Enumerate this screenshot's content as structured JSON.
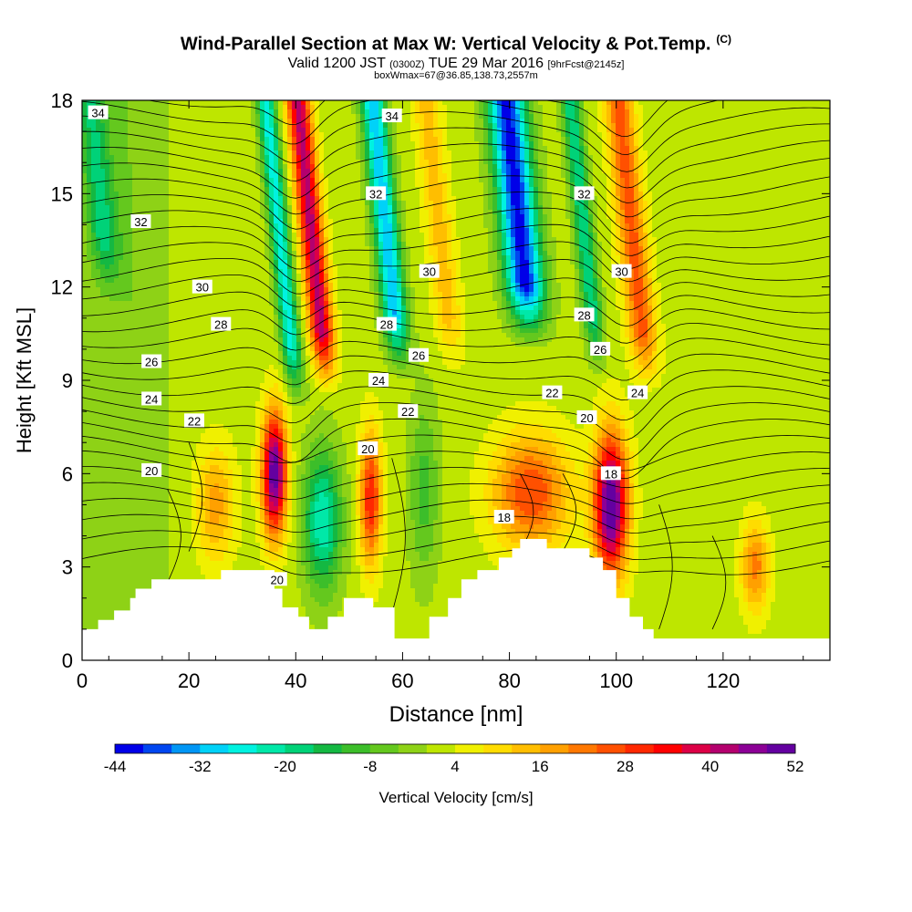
{
  "title": {
    "main": "Wind-Parallel Section at Max W: Vertical Velocity & Pot.Temp.",
    "copyright": "(C)",
    "valid_a": "Valid 1200 JST",
    "valid_b": "(0300Z)",
    "valid_c": "TUE 29 Mar 2016",
    "valid_d": "[9hrFcst@2145z]",
    "sub2": "boxWmax=67@36.85,138.73,2557m"
  },
  "chart_data": {
    "type": "heatmap",
    "xlabel": "Distance [nm]",
    "ylabel": "Height [Kft MSL]",
    "xlim": [
      0,
      140
    ],
    "ylim": [
      0,
      18
    ],
    "x_ticks": [
      0,
      20,
      40,
      60,
      80,
      100,
      120
    ],
    "y_ticks": [
      0,
      3,
      6,
      9,
      12,
      15,
      18
    ],
    "colorbar": {
      "label": "Vertical Velocity [cm/s]",
      "tick_labels": [
        "-44",
        "-32",
        "-20",
        "-8",
        "4",
        "16",
        "28",
        "40",
        "52"
      ],
      "levels": [
        -44,
        -40,
        -36,
        -32,
        -28,
        -24,
        -20,
        -16,
        -12,
        -8,
        -4,
        0,
        4,
        8,
        12,
        16,
        20,
        24,
        28,
        32,
        36,
        40,
        44,
        48,
        52
      ],
      "colors": [
        "#0000e8",
        "#0046f0",
        "#0096f5",
        "#00d2f8",
        "#00f2e0",
        "#00e8a8",
        "#00d278",
        "#14b842",
        "#3cbe2a",
        "#64c81e",
        "#8ed216",
        "#bee600",
        "#f0f000",
        "#ffdc00",
        "#ffbe00",
        "#ffa000",
        "#ff7800",
        "#ff5000",
        "#ff2800",
        "#ff0000",
        "#dc0046",
        "#b4006e",
        "#8c0096",
        "#6400a0"
      ]
    },
    "velocity_features": [
      {
        "x": 36,
        "z": 6.0,
        "w": 50,
        "sx": 1.6,
        "sz": 1.4
      },
      {
        "x": 99,
        "z": 5.0,
        "w": 52,
        "sx": 2.2,
        "sz": 1.6
      },
      {
        "x": 54,
        "z": 5.2,
        "w": 30,
        "sx": 1.4,
        "sz": 1.5
      },
      {
        "x": 84,
        "z": 5.4,
        "w": 26,
        "sx": 5.0,
        "sz": 1.3
      },
      {
        "x": 25,
        "z": 5.0,
        "w": 16,
        "sx": 2.5,
        "sz": 1.3
      },
      {
        "x": 126,
        "z": 3.0,
        "w": 20,
        "sx": 1.8,
        "sz": 1.0
      },
      {
        "x": 45,
        "z": 4.5,
        "w": -26,
        "sx": 2.5,
        "sz": 1.6
      },
      {
        "x": 64,
        "z": 5.5,
        "w": -12,
        "sx": 2.0,
        "sz": 2.0
      }
    ],
    "theta_labels": [
      {
        "x": 3,
        "z": 17.6,
        "text": "34"
      },
      {
        "x": 58,
        "z": 17.5,
        "text": "34"
      },
      {
        "x": 11,
        "z": 14.1,
        "text": "32"
      },
      {
        "x": 55,
        "z": 15.0,
        "text": "32"
      },
      {
        "x": 94,
        "z": 15.0,
        "text": "32"
      },
      {
        "x": 22.5,
        "z": 12.0,
        "text": "30"
      },
      {
        "x": 65,
        "z": 12.5,
        "text": "30"
      },
      {
        "x": 101,
        "z": 12.5,
        "text": "30"
      },
      {
        "x": 26,
        "z": 10.8,
        "text": "28"
      },
      {
        "x": 57,
        "z": 10.8,
        "text": "28"
      },
      {
        "x": 94,
        "z": 11.1,
        "text": "28"
      },
      {
        "x": 13,
        "z": 9.6,
        "text": "26"
      },
      {
        "x": 63,
        "z": 9.8,
        "text": "26"
      },
      {
        "x": 97,
        "z": 10.0,
        "text": "26"
      },
      {
        "x": 13,
        "z": 8.4,
        "text": "24"
      },
      {
        "x": 55.5,
        "z": 9.0,
        "text": "24"
      },
      {
        "x": 104,
        "z": 8.6,
        "text": "24"
      },
      {
        "x": 21,
        "z": 7.7,
        "text": "22"
      },
      {
        "x": 61,
        "z": 8.0,
        "text": "22"
      },
      {
        "x": 88,
        "z": 8.6,
        "text": "22"
      },
      {
        "x": 13,
        "z": 6.1,
        "text": "20"
      },
      {
        "x": 53.5,
        "z": 6.8,
        "text": "20"
      },
      {
        "x": 94.5,
        "z": 7.8,
        "text": "20"
      },
      {
        "x": 36.5,
        "z": 2.6,
        "text": "20"
      },
      {
        "x": 79,
        "z": 4.6,
        "text": "18"
      },
      {
        "x": 99,
        "z": 6.0,
        "text": "18"
      }
    ],
    "terrain_profile_kft": [
      [
        0,
        1.0
      ],
      [
        3,
        1.0
      ],
      [
        3,
        1.3
      ],
      [
        6,
        1.3
      ],
      [
        6,
        1.6
      ],
      [
        9,
        1.6
      ],
      [
        9,
        2.0
      ],
      [
        10,
        2.0
      ],
      [
        10,
        2.3
      ],
      [
        13,
        2.3
      ],
      [
        13,
        2.6
      ],
      [
        26,
        2.6
      ],
      [
        26,
        2.9
      ],
      [
        36,
        2.9
      ],
      [
        36,
        2.3
      ],
      [
        37.5,
        2.3
      ],
      [
        37.5,
        1.7
      ],
      [
        40.5,
        1.7
      ],
      [
        40.5,
        1.4
      ],
      [
        42.5,
        1.4
      ],
      [
        42.5,
        1.0
      ],
      [
        46,
        1.0
      ],
      [
        46,
        1.4
      ],
      [
        49,
        1.4
      ],
      [
        49,
        2.0
      ],
      [
        54.5,
        2.0
      ],
      [
        54.5,
        1.7
      ],
      [
        58.5,
        1.7
      ],
      [
        58.5,
        0.7
      ],
      [
        65,
        0.7
      ],
      [
        65,
        1.4
      ],
      [
        68.5,
        1.4
      ],
      [
        68.5,
        2.0
      ],
      [
        71,
        2.0
      ],
      [
        71,
        2.6
      ],
      [
        74,
        2.6
      ],
      [
        74,
        2.9
      ],
      [
        78,
        2.9
      ],
      [
        78,
        3.3
      ],
      [
        80.5,
        3.3
      ],
      [
        80.5,
        3.6
      ],
      [
        82,
        3.6
      ],
      [
        82,
        3.9
      ],
      [
        87,
        3.9
      ],
      [
        87,
        3.6
      ],
      [
        95,
        3.6
      ],
      [
        95,
        3.3
      ],
      [
        97.5,
        3.3
      ],
      [
        97.5,
        2.9
      ],
      [
        100,
        2.9
      ],
      [
        100,
        2.0
      ],
      [
        102.5,
        2.0
      ],
      [
        102.5,
        1.4
      ],
      [
        105,
        1.4
      ],
      [
        105,
        1.0
      ],
      [
        107,
        1.0
      ],
      [
        107,
        0.7
      ],
      [
        140,
        0.7
      ]
    ]
  }
}
